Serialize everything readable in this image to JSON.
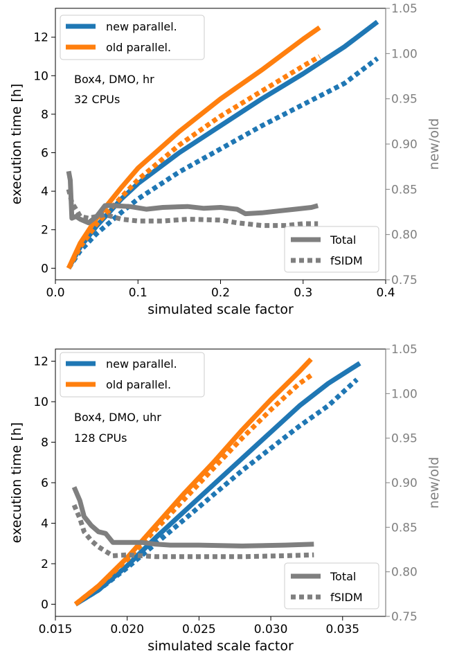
{
  "colors": {
    "new": "#1f77b4",
    "old": "#ff7f0e",
    "ratio": "#7f7f7f",
    "right_axis": "#808080"
  },
  "chart_data": [
    {
      "type": "line",
      "xlabel": "simulated scale factor",
      "ylabel": "execution time [h]",
      "y2label": "new/old",
      "xlim": [
        0.0,
        0.4
      ],
      "ylim": [
        -0.6,
        13.5
      ],
      "y2lim": [
        0.75,
        1.05
      ],
      "xticks": [
        "0.0",
        "0.1",
        "0.2",
        "0.3",
        "0.4"
      ],
      "yticks": [
        "0",
        "2",
        "4",
        "6",
        "8",
        "10",
        "12"
      ],
      "y2ticks": [
        "0.75",
        "0.80",
        "0.85",
        "0.90",
        "0.95",
        "1.00",
        "1.05"
      ],
      "annotation": [
        "Box4, DMO, hr",
        "32 CPUs"
      ],
      "legend_main": [
        "new parallel.",
        "old parallel."
      ],
      "legend_ratio": [
        "Total",
        "fSIDM"
      ],
      "series": [
        {
          "name": "new parallel.",
          "style": "solid",
          "axis": "left",
          "x": [
            0.016,
            0.03,
            0.05,
            0.08,
            0.1,
            0.15,
            0.2,
            0.25,
            0.3,
            0.35,
            0.39
          ],
          "y": [
            0.0,
            1.1,
            2.2,
            3.6,
            4.4,
            6.0,
            7.4,
            8.8,
            10.1,
            11.5,
            12.8
          ]
        },
        {
          "name": "new parallel.",
          "style": "dotted",
          "axis": "left",
          "x": [
            0.016,
            0.03,
            0.05,
            0.08,
            0.1,
            0.15,
            0.2,
            0.25,
            0.3,
            0.35,
            0.39
          ],
          "y": [
            0.0,
            0.9,
            1.8,
            2.9,
            3.6,
            5.0,
            6.2,
            7.4,
            8.5,
            9.6,
            10.9
          ]
        },
        {
          "name": "old parallel.",
          "style": "solid",
          "axis": "left",
          "x": [
            0.016,
            0.03,
            0.05,
            0.08,
            0.1,
            0.15,
            0.2,
            0.25,
            0.3,
            0.32
          ],
          "y": [
            0.0,
            1.3,
            2.6,
            4.2,
            5.2,
            7.1,
            8.8,
            10.3,
            11.9,
            12.5
          ]
        },
        {
          "name": "old parallel.",
          "style": "dotted",
          "axis": "left",
          "x": [
            0.016,
            0.03,
            0.05,
            0.08,
            0.1,
            0.15,
            0.2,
            0.25,
            0.3,
            0.32
          ],
          "y": [
            0.0,
            1.1,
            2.3,
            3.7,
            4.6,
            6.4,
            7.9,
            9.2,
            10.5,
            11.0
          ]
        },
        {
          "name": "Total",
          "style": "solid",
          "axis": "right",
          "x": [
            0.016,
            0.018,
            0.02,
            0.025,
            0.03,
            0.04,
            0.05,
            0.06,
            0.07,
            0.09,
            0.11,
            0.13,
            0.16,
            0.18,
            0.2,
            0.22,
            0.23,
            0.25,
            0.27,
            0.29,
            0.31,
            0.318
          ],
          "y": [
            0.87,
            0.86,
            0.818,
            0.82,
            0.817,
            0.813,
            0.82,
            0.832,
            0.832,
            0.831,
            0.828,
            0.83,
            0.831,
            0.829,
            0.83,
            0.828,
            0.823,
            0.824,
            0.826,
            0.828,
            0.83,
            0.832
          ]
        },
        {
          "name": "fSIDM",
          "style": "dotted",
          "axis": "right",
          "x": [
            0.016,
            0.02,
            0.025,
            0.03,
            0.04,
            0.05,
            0.06,
            0.08,
            0.1,
            0.13,
            0.16,
            0.2,
            0.22,
            0.25,
            0.28,
            0.3,
            0.318
          ],
          "y": [
            0.85,
            0.835,
            0.828,
            0.82,
            0.818,
            0.82,
            0.822,
            0.817,
            0.815,
            0.815,
            0.817,
            0.816,
            0.813,
            0.81,
            0.81,
            0.812,
            0.812
          ]
        }
      ]
    },
    {
      "type": "line",
      "xlabel": "simulated scale factor",
      "ylabel": "execution time [h]",
      "y2label": "new/old",
      "xlim": [
        0.015,
        0.038
      ],
      "ylim": [
        -0.6,
        12.6
      ],
      "y2lim": [
        0.75,
        1.05
      ],
      "xticks": [
        "0.015",
        "0.020",
        "0.025",
        "0.030",
        "0.035"
      ],
      "yticks": [
        "0",
        "2",
        "4",
        "6",
        "8",
        "10",
        "12"
      ],
      "y2ticks": [
        "0.75",
        "0.80",
        "0.85",
        "0.90",
        "0.95",
        "1.00",
        "1.05"
      ],
      "annotation": [
        "Box4, DMO, uhr",
        "128 CPUs"
      ],
      "legend_main": [
        "new parallel.",
        "old parallel."
      ],
      "legend_ratio": [
        "Total",
        "fSIDM"
      ],
      "series": [
        {
          "name": "new parallel.",
          "style": "solid",
          "axis": "left",
          "x": [
            0.0164,
            0.018,
            0.02,
            0.022,
            0.024,
            0.026,
            0.028,
            0.03,
            0.032,
            0.034,
            0.0362
          ],
          "y": [
            0.0,
            0.7,
            1.9,
            3.3,
            4.6,
            5.9,
            7.2,
            8.5,
            9.8,
            10.9,
            11.9
          ]
        },
        {
          "name": "new parallel.",
          "style": "dotted",
          "axis": "left",
          "x": [
            0.0164,
            0.018,
            0.02,
            0.022,
            0.024,
            0.026,
            0.028,
            0.03,
            0.032,
            0.034,
            0.036
          ],
          "y": [
            0.0,
            0.7,
            1.8,
            3.0,
            4.2,
            5.4,
            6.6,
            7.7,
            8.8,
            9.8,
            11.1
          ]
        },
        {
          "name": "old parallel.",
          "style": "solid",
          "axis": "left",
          "x": [
            0.0164,
            0.018,
            0.02,
            0.022,
            0.024,
            0.026,
            0.028,
            0.03,
            0.032,
            0.0328
          ],
          "y": [
            0.0,
            0.9,
            2.3,
            3.9,
            5.5,
            7.0,
            8.6,
            10.1,
            11.5,
            12.1
          ]
        },
        {
          "name": "old parallel.",
          "style": "dotted",
          "axis": "left",
          "x": [
            0.0164,
            0.018,
            0.02,
            0.022,
            0.024,
            0.026,
            0.028,
            0.03,
            0.032,
            0.0328
          ],
          "y": [
            0.0,
            0.9,
            2.2,
            3.7,
            5.2,
            6.7,
            8.2,
            9.6,
            10.9,
            11.3
          ]
        },
        {
          "name": "Total",
          "style": "solid",
          "axis": "right",
          "x": [
            0.0163,
            0.0167,
            0.017,
            0.0175,
            0.018,
            0.0185,
            0.019,
            0.02,
            0.021,
            0.022,
            0.023,
            0.025,
            0.028,
            0.031,
            0.033
          ],
          "y": [
            0.895,
            0.88,
            0.862,
            0.852,
            0.845,
            0.843,
            0.833,
            0.833,
            0.833,
            0.831,
            0.83,
            0.83,
            0.829,
            0.83,
            0.831
          ]
        },
        {
          "name": "fSIDM",
          "style": "dotted",
          "axis": "right",
          "x": [
            0.0163,
            0.0167,
            0.017,
            0.0175,
            0.018,
            0.0185,
            0.019,
            0.02,
            0.021,
            0.022,
            0.025,
            0.028,
            0.031,
            0.033
          ],
          "y": [
            0.875,
            0.86,
            0.845,
            0.835,
            0.828,
            0.823,
            0.818,
            0.819,
            0.818,
            0.817,
            0.817,
            0.817,
            0.818,
            0.819
          ]
        }
      ]
    }
  ]
}
